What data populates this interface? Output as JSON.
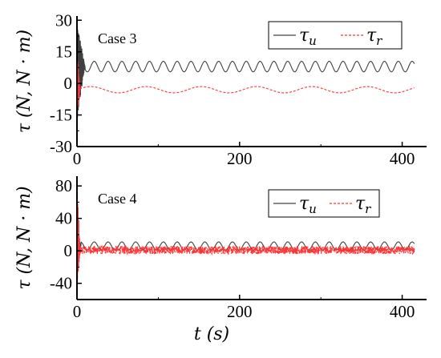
{
  "chart_data": [
    {
      "type": "line",
      "annotation": "Case 3",
      "xlim": [
        0,
        430
      ],
      "ylim": [
        -30,
        32
      ],
      "xticks": [
        0,
        200,
        400
      ],
      "yticks": [
        30,
        15,
        0,
        -15,
        -30
      ],
      "ytick_labels": [
        "30",
        "15",
        "0",
        "-15",
        "-30"
      ],
      "ylabel": {
        "sym": "τ",
        "unit": "(N, N · m)"
      },
      "legend": {
        "position": "top-right",
        "boxed": true
      },
      "series": [
        {
          "name": "τ",
          "subscript": "u",
          "color": "#404040",
          "style": "solid",
          "transient": {
            "until": 10,
            "peak_hi": 30,
            "peak_lo": -18
          },
          "steady": {
            "mean": 8,
            "amplitude": 2.5,
            "period": 17
          },
          "x_end": 415
        },
        {
          "name": "τ",
          "subscript": "r",
          "color": "#ff3333",
          "style": "dashed",
          "transient": {
            "until": 4,
            "peak_hi": 18,
            "peak_lo": -20
          },
          "steady": {
            "mean": -3,
            "amplitude": 1.5,
            "period": 68
          },
          "x_end": 415
        }
      ]
    },
    {
      "type": "line",
      "annotation": "Case 4",
      "xlim": [
        0,
        430
      ],
      "ylim": [
        -60,
        92
      ],
      "xticks": [
        0,
        200,
        400
      ],
      "yticks": [
        80,
        40,
        0,
        -40
      ],
      "ytick_labels": [
        "80",
        "40",
        "0",
        "-40"
      ],
      "xlabel": {
        "sym": "t",
        "unit": "(s)"
      },
      "ylabel": {
        "sym": "τ",
        "unit": "(N, N · m)"
      },
      "legend": {
        "position": "top-right",
        "boxed": true
      },
      "series": [
        {
          "name": "τ",
          "subscript": "u",
          "color": "#404040",
          "style": "solid",
          "transient": {
            "until": 5,
            "peak_hi": 25,
            "peak_lo": -5
          },
          "steady": {
            "mean": 6,
            "amplitude": 5,
            "period": 17
          },
          "x_end": 415
        },
        {
          "name": "τ",
          "subscript": "r",
          "color": "#ff3333",
          "style": "dashed",
          "transient": {
            "until": 4,
            "peak_hi": 88,
            "peak_lo": -50
          },
          "steady": {
            "mean": 1,
            "amplitude": 5,
            "period": 3
          },
          "x_end": 415
        }
      ]
    }
  ]
}
